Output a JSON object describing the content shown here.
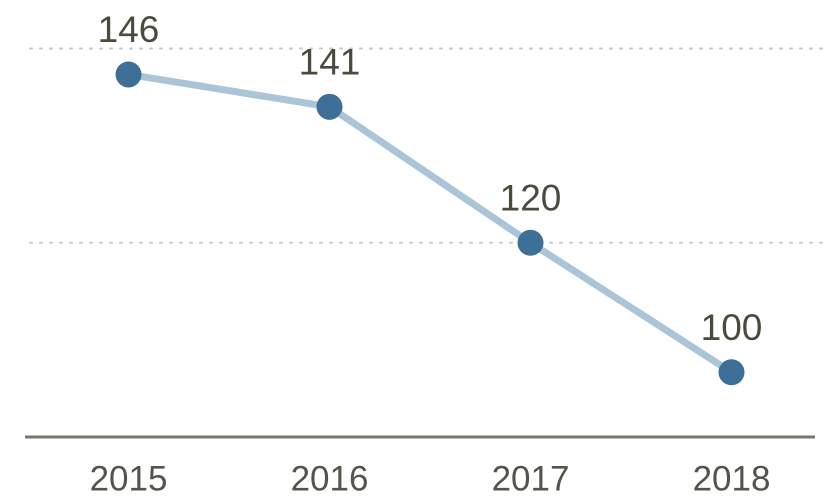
{
  "chart_data": {
    "type": "line",
    "categories": [
      "2015",
      "2016",
      "2017",
      "2018"
    ],
    "values": [
      146,
      141,
      120,
      100
    ],
    "color": "#3e6f97",
    "line_color": "#aac5d8",
    "ylim": [
      90,
      157.5
    ],
    "yticks": [
      120,
      150
    ],
    "grid": true
  }
}
